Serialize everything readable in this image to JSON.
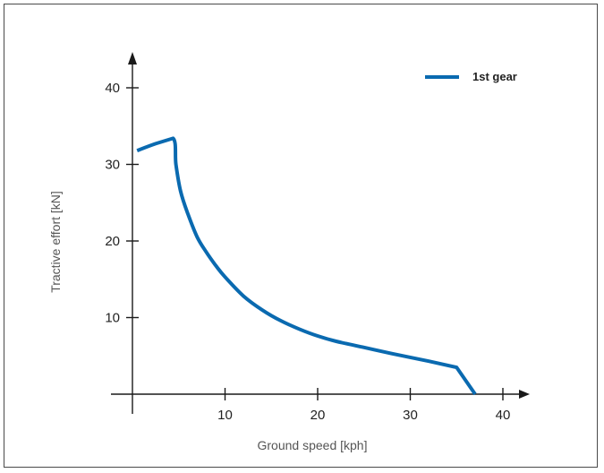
{
  "chart_data": {
    "type": "line",
    "title": "",
    "xlabel": "Ground speed [kph]",
    "ylabel": "Tractive effort [kN]",
    "xlim": [
      0,
      43
    ],
    "ylim": [
      0,
      43
    ],
    "xticks": [
      10,
      20,
      30,
      40
    ],
    "yticks": [
      10,
      20,
      30,
      40
    ],
    "x_tick_labels": [
      "10",
      "20",
      "30",
      "40"
    ],
    "y_tick_labels": [
      "10",
      "20",
      "30",
      "40"
    ],
    "grid": false,
    "legend_position": "top-right",
    "series": [
      {
        "name": "1st gear",
        "color": "#0a6ab0",
        "points": [
          [
            0.5,
            31.8
          ],
          [
            2.5,
            32.7
          ],
          [
            4.4,
            33.4
          ],
          [
            4.7,
            30.0
          ],
          [
            5.2,
            26.5
          ],
          [
            6.0,
            23.5
          ],
          [
            7.0,
            20.5
          ],
          [
            8.0,
            18.5
          ],
          [
            9.0,
            16.8
          ],
          [
            10.0,
            15.3
          ],
          [
            12.0,
            12.8
          ],
          [
            14.0,
            11.0
          ],
          [
            16.0,
            9.6
          ],
          [
            18.0,
            8.5
          ],
          [
            20.0,
            7.6
          ],
          [
            22.0,
            6.9
          ],
          [
            25.0,
            6.1
          ],
          [
            28.0,
            5.3
          ],
          [
            32.0,
            4.3
          ],
          [
            35.0,
            3.5
          ],
          [
            37.0,
            0.0
          ]
        ]
      }
    ]
  }
}
